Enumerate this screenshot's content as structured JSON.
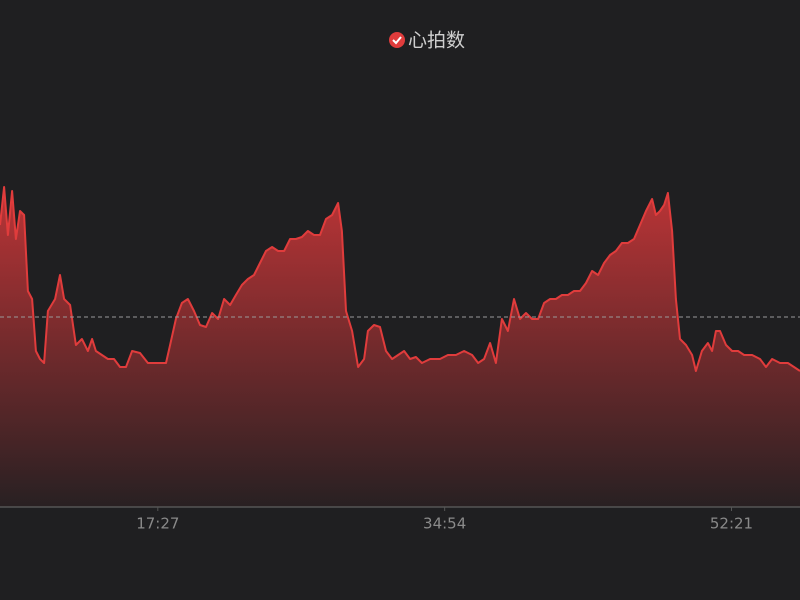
{
  "chart_data": {
    "type": "area",
    "series": [
      {
        "name": "心拍数",
        "color": "#e03c3c",
        "x": [
          471,
          486,
          500,
          515,
          529,
          544,
          559,
          573,
          588,
          602,
          617,
          632,
          646,
          672,
          690,
          705,
          727,
          748,
          770,
          792,
          807,
          821,
          843,
          865,
          887,
          909,
          931,
          953,
          982,
          1011,
          1040,
          1077,
          1092,
          1113,
          1135,
          1157,
          1179,
          1201,
          1223,
          1245,
          1267,
          1289,
          1311,
          1332,
          1354,
          1376,
          1398,
          1420,
          1442,
          1464,
          1486,
          1508,
          1530,
          1551,
          1573,
          1595,
          1617,
          1639,
          1661,
          1683,
          1705,
          1719,
          1734,
          1756,
          1778,
          1800,
          1814,
          1836,
          1858,
          1880,
          1902,
          1924,
          1946,
          1968,
          1989,
          2011,
          2041,
          2077,
          2106,
          2135,
          2165,
          2194,
          2216,
          2238,
          2260,
          2281,
          2303,
          2325,
          2347,
          2369,
          2391,
          2413,
          2435,
          2457,
          2479,
          2500,
          2522,
          2544,
          2566,
          2588,
          2610,
          2632,
          2654,
          2676,
          2698,
          2719,
          2741,
          2763,
          2785,
          2807,
          2829,
          2851,
          2865,
          2880,
          2895,
          2909,
          2924,
          2938,
          2953,
          2975,
          2997,
          3011,
          3033,
          3055,
          3070,
          3084,
          3099,
          3121,
          3143,
          3165,
          3187,
          3216,
          3245,
          3267,
          3289,
          3318,
          3347,
          3369,
          3391
        ],
        "values": [
          70.5,
          80,
          68,
          79,
          67,
          74,
          73,
          54,
          52,
          39,
          37,
          36,
          49,
          52,
          58,
          52,
          50.5,
          40.5,
          42,
          39,
          42,
          39,
          38,
          37,
          37,
          35,
          35,
          39,
          38.5,
          36,
          36,
          36,
          40.5,
          47,
          51,
          52,
          49,
          45.5,
          45,
          48.5,
          47,
          52,
          50.5,
          53,
          55.5,
          57,
          58,
          61,
          64,
          65,
          64,
          64,
          67,
          67,
          67.5,
          69,
          68,
          68,
          72,
          73,
          76,
          69,
          49,
          44,
          35,
          37,
          44,
          45.5,
          45,
          39,
          37,
          38,
          39,
          37,
          37.5,
          36,
          37,
          37,
          38,
          38,
          39,
          38,
          36,
          37,
          41,
          36,
          47,
          44,
          52,
          47,
          48.5,
          47,
          47,
          51,
          52,
          52,
          53,
          53,
          54,
          54,
          56,
          59,
          58,
          61,
          63,
          64,
          66,
          66,
          67,
          70.5,
          74,
          77,
          73,
          74,
          75.5,
          78.5,
          69,
          52,
          42,
          40.5,
          38,
          34,
          39,
          41,
          39,
          44,
          44,
          40.5,
          39,
          39,
          38,
          38,
          37,
          35,
          37,
          36,
          36,
          35,
          34
        ]
      }
    ],
    "average": 47.5,
    "xlim": [
      471,
      3391
    ],
    "ylim": [
      0,
      100
    ],
    "xticks": [
      {
        "value": 1047,
        "label": "17:27"
      },
      {
        "value": 2094,
        "label": "34:54"
      },
      {
        "value": 3141,
        "label": "52:21"
      }
    ]
  }
}
